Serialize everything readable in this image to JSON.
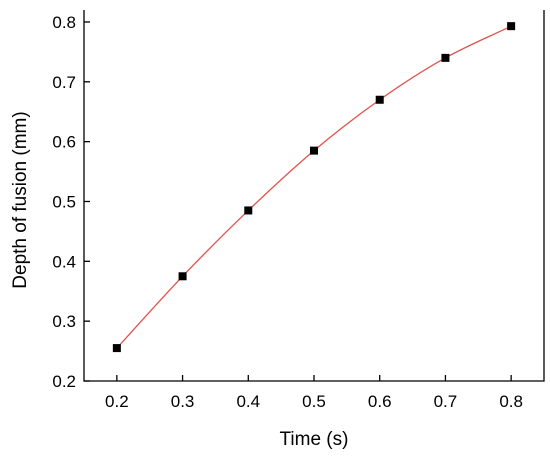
{
  "chart_data": {
    "type": "scatter",
    "title": "",
    "xlabel": "Time (s)",
    "ylabel": "Depth of fusion (mm)",
    "xlim": [
      0.15,
      0.85
    ],
    "ylim": [
      0.2,
      0.82
    ],
    "xticks": [
      0.2,
      0.3,
      0.4,
      0.5,
      0.6,
      0.7,
      0.8
    ],
    "yticks": [
      0.2,
      0.3,
      0.4,
      0.5,
      0.6,
      0.7,
      0.8
    ],
    "xtick_labels": [
      "0.2",
      "0.3",
      "0.4",
      "0.5",
      "0.6",
      "0.7",
      "0.8"
    ],
    "ytick_labels": [
      "0.2",
      "0.3",
      "0.4",
      "0.5",
      "0.6",
      "0.7",
      "0.8"
    ],
    "grid": false,
    "legend": "none",
    "series": [
      {
        "x": [
          0.2,
          0.3,
          0.4,
          0.5,
          0.6,
          0.7,
          0.8
        ],
        "y": [
          0.255,
          0.375,
          0.485,
          0.585,
          0.67,
          0.74,
          0.793
        ],
        "marker": "square",
        "marker_color": "#000000",
        "fit_line_color": "#e0524a"
      }
    ]
  }
}
